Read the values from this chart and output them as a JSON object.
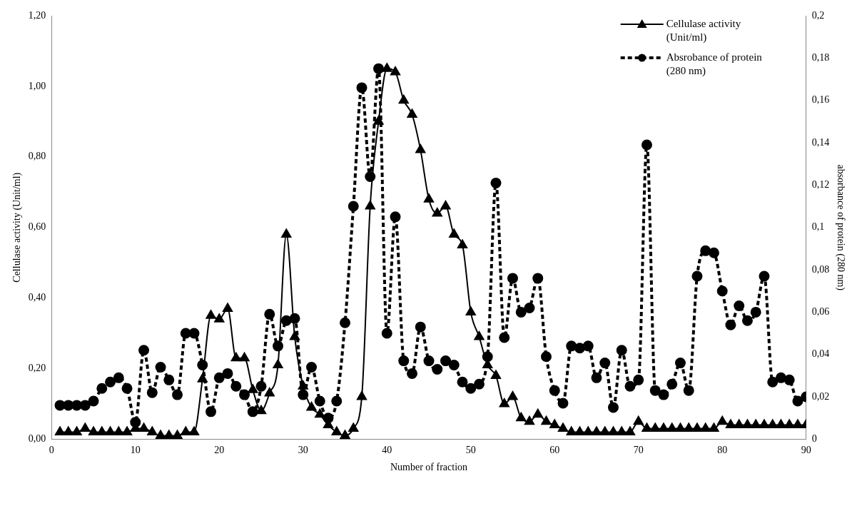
{
  "chart_data": {
    "type": "line",
    "xlabel": "Number of fraction",
    "ylabel": "Cellulase activity (Unit/ml)",
    "y2label": "absorbance of protein (280 nm)",
    "legend": "top right",
    "grid": false,
    "x": [
      1,
      2,
      3,
      4,
      5,
      6,
      7,
      8,
      9,
      10,
      11,
      12,
      13,
      14,
      15,
      16,
      17,
      18,
      19,
      20,
      21,
      22,
      23,
      24,
      25,
      26,
      27,
      28,
      29,
      30,
      31,
      32,
      33,
      34,
      35,
      36,
      37,
      38,
      39,
      40,
      41,
      42,
      43,
      44,
      45,
      46,
      47,
      48,
      49,
      50,
      51,
      52,
      53,
      54,
      55,
      56,
      57,
      58,
      59,
      60,
      61,
      62,
      63,
      64,
      65,
      66,
      67,
      68,
      69,
      70,
      71,
      72,
      73,
      74,
      75,
      76,
      77,
      78,
      79,
      80,
      81,
      82,
      83,
      84,
      85,
      86,
      87,
      88,
      89,
      90
    ],
    "xlim": [
      0,
      90
    ],
    "xticks": [
      0,
      10,
      20,
      30,
      40,
      50,
      60,
      70,
      80,
      90
    ],
    "ylim": [
      0,
      1.2
    ],
    "yticks": [
      {
        "value": 0,
        "label": "0,00"
      },
      {
        "value": 0.2,
        "label": "0,20"
      },
      {
        "value": 0.4,
        "label": "0,40"
      },
      {
        "value": 0.6,
        "label": "0,60"
      },
      {
        "value": 0.8,
        "label": "0,80"
      },
      {
        "value": 1,
        "label": "1,00"
      },
      {
        "value": 1.2,
        "label": "1,20"
      }
    ],
    "y2lim": [
      0,
      0.2
    ],
    "y2ticks": [
      0,
      {
        "value": 0.02,
        "label": "0,02"
      },
      {
        "value": 0.04,
        "label": "0,04"
      },
      {
        "value": 0.06,
        "label": "0,06"
      },
      {
        "value": 0.08,
        "label": "0,08"
      },
      {
        "value": 0.1,
        "label": "0,1"
      },
      {
        "value": 0.12,
        "label": "0,12"
      },
      {
        "value": 0.14,
        "label": "0,14"
      },
      {
        "value": 0.16,
        "label": "0,16"
      },
      {
        "value": 0.18,
        "label": "0,18"
      },
      {
        "value": 0.2,
        "label": "0,2"
      }
    ],
    "series": [
      {
        "name": "Cellulase activity (Unit/ml)",
        "color": "#000000",
        "marker": "triangle",
        "line_style": "solid",
        "values": [
          0.02,
          0.02,
          0.02,
          0.03,
          0.02,
          0.02,
          0.02,
          0.02,
          0.02,
          0.03,
          0.03,
          0.02,
          0.01,
          0.01,
          0.01,
          0.02,
          0.02,
          0.17,
          0.35,
          0.34,
          0.37,
          0.23,
          0.23,
          0.14,
          0.08,
          0.13,
          0.21,
          0.58,
          0.29,
          0.15,
          0.09,
          0.07,
          0.04,
          0.02,
          0.01,
          0.03,
          0.12,
          0.66,
          0.9,
          1.05,
          1.04,
          0.96,
          0.92,
          0.82,
          0.68,
          0.64,
          0.66,
          0.58,
          0.55,
          0.36,
          0.29,
          0.21,
          0.18,
          0.1,
          0.12,
          0.06,
          0.05,
          0.07,
          0.05,
          0.04,
          0.03,
          0.02,
          0.02,
          0.02,
          0.02,
          0.02,
          0.02,
          0.02,
          0.02,
          0.05,
          0.03,
          0.03,
          0.03,
          0.03,
          0.03,
          0.03,
          0.03,
          0.03,
          0.03,
          0.05,
          0.04,
          0.04,
          0.04,
          0.04,
          0.04,
          0.04,
          0.04,
          0.04,
          0.04,
          0.04
        ]
      },
      {
        "name": "Absrobance of protein (280 nm)",
        "color": "#000000",
        "marker": "circle",
        "line_style": "dashed",
        "axis": "y2",
        "values": [
          0.016,
          0.016,
          0.016,
          0.016,
          0.018,
          0.024,
          0.027,
          0.029,
          0.024,
          0.008,
          0.042,
          0.022,
          0.034,
          0.028,
          0.021,
          0.05,
          0.05,
          0.035,
          0.013,
          0.029,
          0.031,
          0.025,
          0.021,
          0.013,
          0.025,
          0.059,
          0.044,
          0.056,
          0.057,
          0.021,
          0.034,
          0.018,
          0.01,
          0.018,
          0.055,
          0.11,
          0.166,
          0.124,
          0.175,
          0.05,
          0.105,
          0.037,
          0.031,
          0.053,
          0.037,
          0.033,
          0.037,
          0.035,
          0.027,
          0.024,
          0.026,
          0.039,
          0.121,
          0.048,
          0.076,
          0.06,
          0.062,
          0.076,
          0.039,
          0.023,
          0.017,
          0.044,
          0.043,
          0.044,
          0.029,
          0.036,
          0.015,
          0.042,
          0.025,
          0.028,
          0.139,
          0.023,
          0.021,
          0.026,
          0.036,
          0.023,
          0.077,
          0.089,
          0.088,
          0.07,
          0.054,
          0.063,
          0.056,
          0.06,
          0.077,
          0.027,
          0.029,
          0.028,
          0.018,
          0.02
        ]
      }
    ]
  }
}
